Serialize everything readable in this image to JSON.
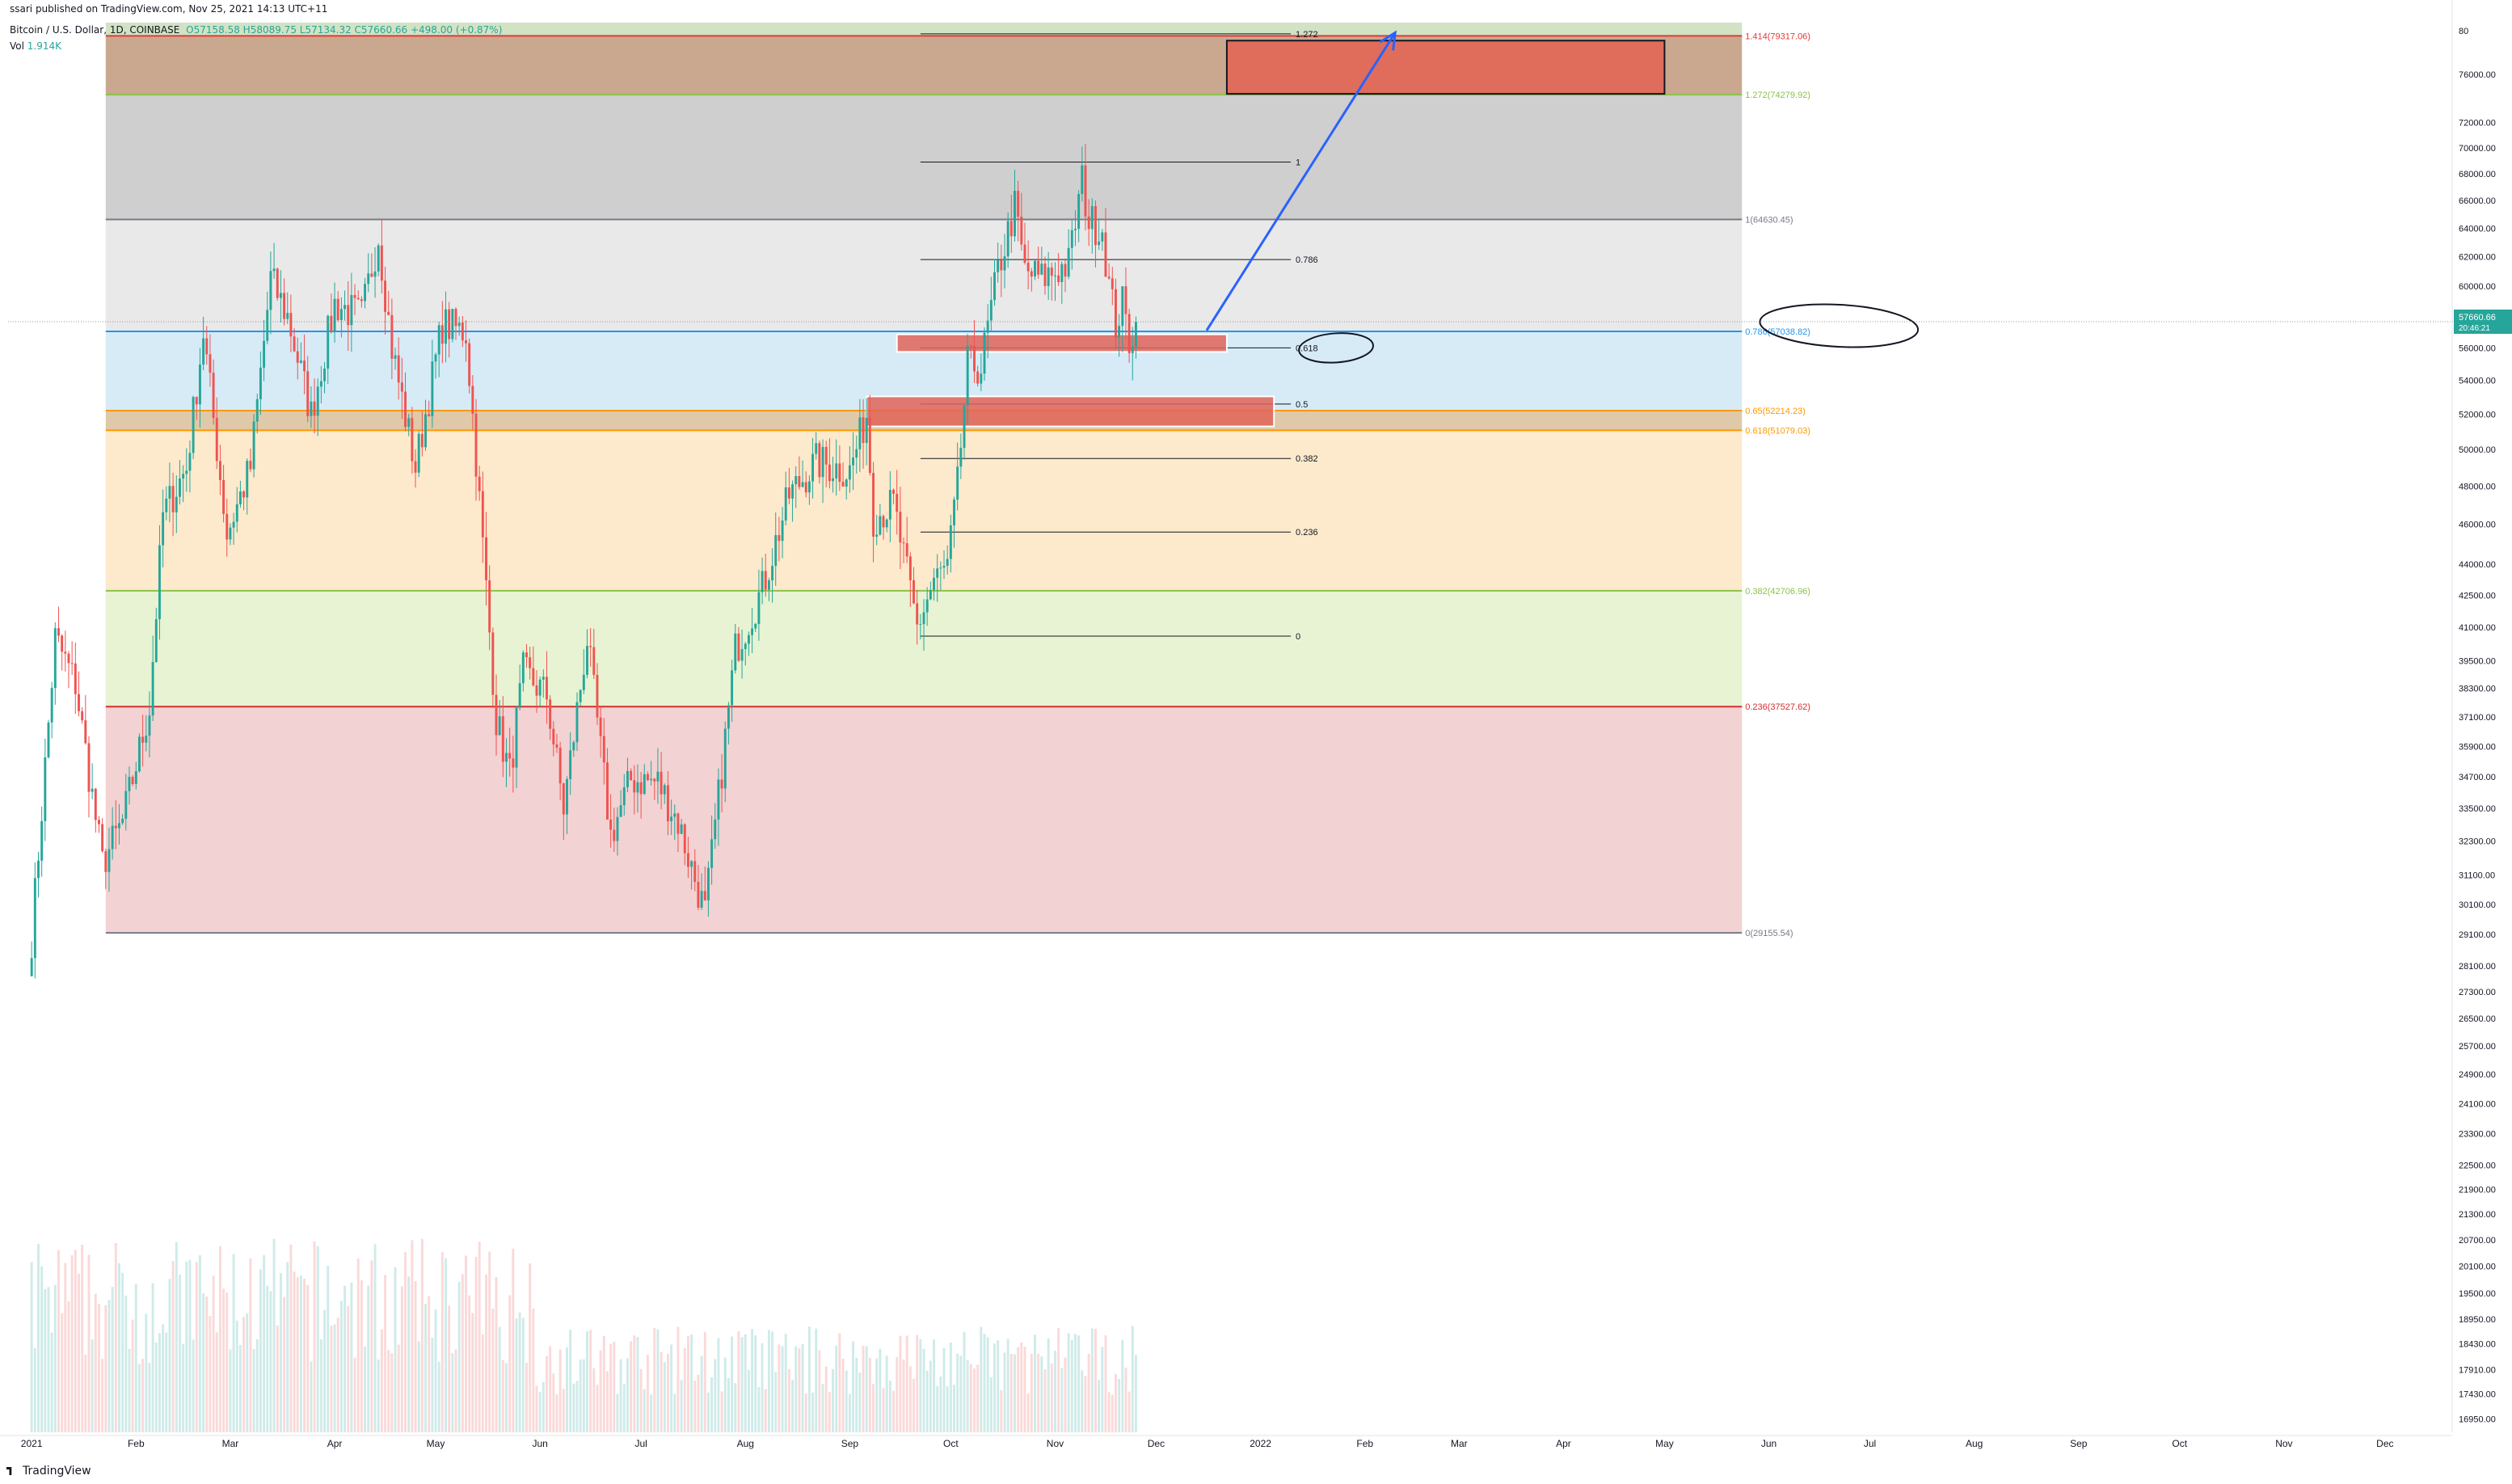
{
  "header": {
    "published": "ssari published on TradingView.com, Nov 25, 2021 14:13 UTC+11",
    "symbol": "Bitcoin / U.S. Dollar, 1D, COINBASE",
    "ohlc": "O57158.58  H58089.75  L57134.32  C57660.66  +498.00 (+0.87%)",
    "vol_label": "Vol",
    "vol_value": "1.914K"
  },
  "brand": "TradingView",
  "colors": {
    "up": "#26a69a",
    "down": "#ef5350",
    "price_tag": "#26a69a",
    "annotation_blue": "#2962ff",
    "box_red": "#e06c5c"
  },
  "chart_data": {
    "type": "candlestick",
    "symbol": "BTCUSD",
    "y_scale": "log",
    "ylim": [
      16700,
      80500
    ],
    "x_range": [
      "2020-12-25",
      "2022-12-20"
    ],
    "x_ticks": [
      {
        "label": "2021",
        "date": "2021-01-01"
      },
      {
        "label": "Feb",
        "date": "2021-02-01"
      },
      {
        "label": "Mar",
        "date": "2021-03-01"
      },
      {
        "label": "Apr",
        "date": "2021-04-01"
      },
      {
        "label": "May",
        "date": "2021-05-01"
      },
      {
        "label": "Jun",
        "date": "2021-06-01"
      },
      {
        "label": "Jul",
        "date": "2021-07-01"
      },
      {
        "label": "Aug",
        "date": "2021-08-01"
      },
      {
        "label": "Sep",
        "date": "2021-09-01"
      },
      {
        "label": "Oct",
        "date": "2021-10-01"
      },
      {
        "label": "Nov",
        "date": "2021-11-01"
      },
      {
        "label": "Dec",
        "date": "2021-12-01"
      },
      {
        "label": "2022",
        "date": "2022-01-01"
      },
      {
        "label": "Feb",
        "date": "2022-02-01"
      },
      {
        "label": "Mar",
        "date": "2022-03-01"
      },
      {
        "label": "Apr",
        "date": "2022-04-01"
      },
      {
        "label": "May",
        "date": "2022-05-01"
      },
      {
        "label": "Jun",
        "date": "2022-06-01"
      },
      {
        "label": "Jul",
        "date": "2022-07-01"
      },
      {
        "label": "Aug",
        "date": "2022-08-01"
      },
      {
        "label": "Sep",
        "date": "2022-09-01"
      },
      {
        "label": "Oct",
        "date": "2022-10-01"
      },
      {
        "label": "Nov",
        "date": "2022-11-01"
      },
      {
        "label": "Dec",
        "date": "2022-12-01"
      }
    ],
    "y_ticks": [
      {
        "label": "76000.00",
        "value": 76000
      },
      {
        "label": "72000.00",
        "value": 72000
      },
      {
        "label": "70000.00",
        "value": 70000
      },
      {
        "label": "68000.00",
        "value": 68000
      },
      {
        "label": "66000.00",
        "value": 66000
      },
      {
        "label": "64000.00",
        "value": 64000
      },
      {
        "label": "62000.00",
        "value": 62000
      },
      {
        "label": "60000.00",
        "value": 60000
      },
      {
        "label": "58000.00",
        "value": 58000
      },
      {
        "label": "56000.00",
        "value": 56000
      },
      {
        "label": "54000.00",
        "value": 54000
      },
      {
        "label": "52000.00",
        "value": 52000
      },
      {
        "label": "50000.00",
        "value": 50000
      },
      {
        "label": "48000.00",
        "value": 48000
      },
      {
        "label": "46000.00",
        "value": 46000
      },
      {
        "label": "44000.00",
        "value": 44000
      },
      {
        "label": "42500.00",
        "value": 42500
      },
      {
        "label": "41000.00",
        "value": 41000
      },
      {
        "label": "39500.00",
        "value": 39500
      },
      {
        "label": "38300.00",
        "value": 38300
      },
      {
        "label": "37100.00",
        "value": 37100
      },
      {
        "label": "35900.00",
        "value": 35900
      },
      {
        "label": "34700.00",
        "value": 34700
      },
      {
        "label": "33500.00",
        "value": 33500
      },
      {
        "label": "32300.00",
        "value": 32300
      },
      {
        "label": "31100.00",
        "value": 31100
      },
      {
        "label": "30100.00",
        "value": 30100
      },
      {
        "label": "29100.00",
        "value": 29100
      },
      {
        "label": "28100.00",
        "value": 28100
      },
      {
        "label": "27300.00",
        "value": 27300
      },
      {
        "label": "26500.00",
        "value": 26500
      },
      {
        "label": "25700.00",
        "value": 25700
      },
      {
        "label": "24900.00",
        "value": 24900
      },
      {
        "label": "24100.00",
        "value": 24100
      },
      {
        "label": "23300.00",
        "value": 23300
      },
      {
        "label": "22500.00",
        "value": 22500
      },
      {
        "label": "21900.00",
        "value": 21900
      },
      {
        "label": "21300.00",
        "value": 21300
      },
      {
        "label": "20700.00",
        "value": 20700
      },
      {
        "label": "20100.00",
        "value": 20100
      },
      {
        "label": "19500.00",
        "value": 19500
      },
      {
        "label": "18950.00",
        "value": 18950
      },
      {
        "label": "18430.00",
        "value": 18430
      },
      {
        "label": "17910.00",
        "value": 17910
      },
      {
        "label": "17430.00",
        "value": 17430
      },
      {
        "label": "16950.00",
        "value": 16950
      }
    ],
    "top_axis_label": {
      "label": "80",
      "value": 80500
    },
    "last_price": {
      "value": 57660.66,
      "label": "57660.66",
      "countdown": "20:46:21"
    },
    "price_keypoints": [
      [
        "2021-01-01",
        29000
      ],
      [
        "2021-01-08",
        40500
      ],
      [
        "2021-01-14",
        38500
      ],
      [
        "2021-01-22",
        31500
      ],
      [
        "2021-01-28",
        33000
      ],
      [
        "2021-02-05",
        37500
      ],
      [
        "2021-02-09",
        46500
      ],
      [
        "2021-02-16",
        49000
      ],
      [
        "2021-02-21",
        57000
      ],
      [
        "2021-02-28",
        45500
      ],
      [
        "2021-03-07",
        49000
      ],
      [
        "2021-03-13",
        60500
      ],
      [
        "2021-03-18",
        58000
      ],
      [
        "2021-03-25",
        52000
      ],
      [
        "2021-04-01",
        58800
      ],
      [
        "2021-04-09",
        58000
      ],
      [
        "2021-04-14",
        63500
      ],
      [
        "2021-04-18",
        56000
      ],
      [
        "2021-04-25",
        49000
      ],
      [
        "2021-05-03",
        57500
      ],
      [
        "2021-05-10",
        57000
      ],
      [
        "2021-05-13",
        49500
      ],
      [
        "2021-05-19",
        37000
      ],
      [
        "2021-05-23",
        34800
      ],
      [
        "2021-05-27",
        39000
      ],
      [
        "2021-06-03",
        38000
      ],
      [
        "2021-06-08",
        33500
      ],
      [
        "2021-06-15",
        40500
      ],
      [
        "2021-06-22",
        32500
      ],
      [
        "2021-06-28",
        34600
      ],
      [
        "2021-07-06",
        34500
      ],
      [
        "2021-07-12",
        33000
      ],
      [
        "2021-07-20",
        29800
      ],
      [
        "2021-07-25",
        35000
      ],
      [
        "2021-07-29",
        40000
      ],
      [
        "2021-08-06",
        42800
      ],
      [
        "2021-08-14",
        47500
      ],
      [
        "2021-08-22",
        49300
      ],
      [
        "2021-09-01",
        48800
      ],
      [
        "2021-09-06",
        52000
      ],
      [
        "2021-09-08",
        46400
      ],
      [
        "2021-09-14",
        47000
      ],
      [
        "2021-09-21",
        41000
      ],
      [
        "2021-09-26",
        43200
      ],
      [
        "2021-09-30",
        43800
      ],
      [
        "2021-10-03",
        48000
      ],
      [
        "2021-10-06",
        55000
      ],
      [
        "2021-10-10",
        54800
      ],
      [
        "2021-10-15",
        61000
      ],
      [
        "2021-10-20",
        65500
      ],
      [
        "2021-10-23",
        61000
      ],
      [
        "2021-10-28",
        60500
      ],
      [
        "2021-11-01",
        61000
      ],
      [
        "2021-11-05",
        61500
      ],
      [
        "2021-11-09",
        67500
      ],
      [
        "2021-11-11",
        64500
      ],
      [
        "2021-11-15",
        64000
      ],
      [
        "2021-11-17",
        60000
      ],
      [
        "2021-11-19",
        57500
      ],
      [
        "2021-11-21",
        58800
      ],
      [
        "2021-11-23",
        56500
      ],
      [
        "2021-11-25",
        57660
      ]
    ],
    "volume_max_approx": 45000,
    "fib_retracement": {
      "range_dates": [
        "2021-01-23",
        "2022-05-24"
      ],
      "levels": [
        {
          "ratio": 1.414,
          "price": 79317.06,
          "label": "1.414(79317.06)",
          "color": "#e53935"
        },
        {
          "ratio": 1.272,
          "price": 74279.92,
          "label": "1.272(74279.92)",
          "color": "#8bc34a"
        },
        {
          "ratio": 1,
          "price": 64630.45,
          "label": "1(64630.45)",
          "color": "#787b86"
        },
        {
          "ratio": 0.786,
          "price": 57038.82,
          "label": "0.786(57038.82)",
          "color": "#2196f3"
        },
        {
          "ratio": 0.65,
          "price": 52214.23,
          "label": "0.65(52214.23)",
          "color": "#ff9800"
        },
        {
          "ratio": 0.618,
          "price": 51079.03,
          "label": "0.618(51079.03)",
          "color": "#ff9800"
        },
        {
          "ratio": 0.382,
          "price": 42706.96,
          "label": "0.382(42706.96)",
          "color": "#8bc34a"
        },
        {
          "ratio": 0.236,
          "price": 37527.62,
          "label": "0.236(37527.62)",
          "color": "#d32f2f"
        },
        {
          "ratio": 0,
          "price": 29155.54,
          "label": "0(29155.54)",
          "color": "#787b86"
        }
      ]
    },
    "fib_extension": {
      "range_dates": [
        "2021-09-22",
        "2022-01-10"
      ],
      "levels": [
        {
          "label": "1.272",
          "price": 79500
        },
        {
          "label": "1",
          "price": 68900
        },
        {
          "label": "0.786",
          "price": 61800
        },
        {
          "label": "0.618",
          "price": 56000
        },
        {
          "label": "0.5",
          "price": 52600
        },
        {
          "label": "0.382",
          "price": 49500
        },
        {
          "label": "0.236",
          "price": 45600
        },
        {
          "label": "0",
          "price": 40600
        }
      ]
    },
    "boxes": [
      {
        "name": "target-box",
        "from": "2021-12-22",
        "to": "2022-05-01",
        "high": 78900,
        "low": 74350
      },
      {
        "name": "support-box-upper",
        "from": "2021-09-15",
        "to": "2021-12-22",
        "high": 56850,
        "low": 55750
      },
      {
        "name": "support-box-lower",
        "from": "2021-09-06",
        "to": "2022-01-05",
        "high": 53050,
        "low": 51300
      }
    ],
    "projection_arrow": {
      "from": [
        "2021-12-16",
        57100
      ],
      "to": [
        "2022-02-10",
        79600
      ]
    }
  }
}
